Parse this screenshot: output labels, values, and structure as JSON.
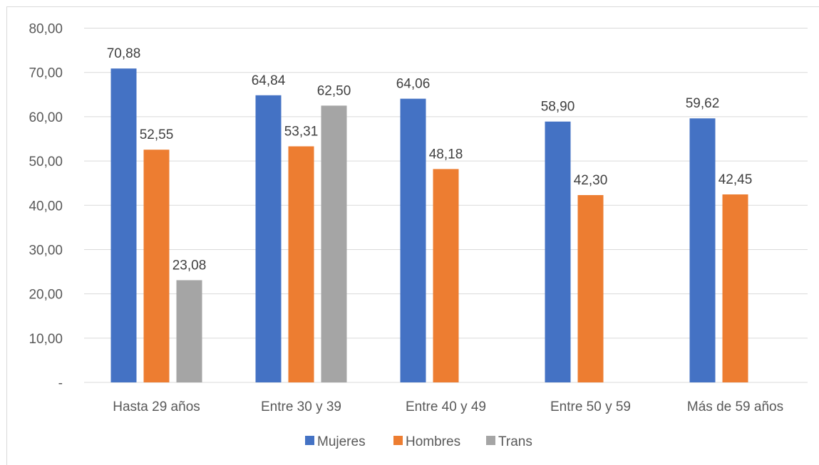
{
  "chart_data": {
    "type": "bar",
    "categories": [
      "Hasta 29 años",
      "Entre 30 y 39",
      "Entre 40 y 49",
      "Entre 50 y 59",
      "Más de 59 años"
    ],
    "series": [
      {
        "name": "Mujeres",
        "color": "#4472C4",
        "values": [
          70.88,
          64.84,
          64.06,
          58.9,
          59.62
        ],
        "labels": [
          "70,88",
          "64,84",
          "64,06",
          "58,90",
          "59,62"
        ]
      },
      {
        "name": "Hombres",
        "color": "#ED7D31",
        "values": [
          52.55,
          53.31,
          48.18,
          42.3,
          42.45
        ],
        "labels": [
          "52,55",
          "53,31",
          "48,18",
          "42,30",
          "42,45"
        ]
      },
      {
        "name": "Trans",
        "color": "#A5A5A5",
        "values": [
          23.08,
          62.5,
          null,
          null,
          null
        ],
        "labels": [
          "23,08",
          "62,50",
          null,
          null,
          null
        ]
      }
    ],
    "ylim": [
      0,
      80
    ],
    "yticks": [
      0,
      10,
      20,
      30,
      40,
      50,
      60,
      70,
      80
    ],
    "ytick_labels": [
      "-",
      "10,00",
      "20,00",
      "30,00",
      "40,00",
      "50,00",
      "60,00",
      "70,00",
      "80,00"
    ],
    "grid": true,
    "gridline_color": "#d9d9d9",
    "legend_position": "bottom",
    "title": "",
    "xlabel": "",
    "ylabel": ""
  }
}
